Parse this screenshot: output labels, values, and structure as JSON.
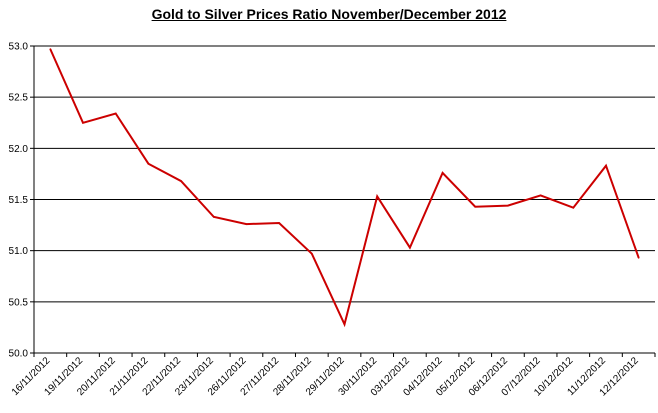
{
  "chart_data": {
    "type": "line",
    "title": "Gold to Silver Prices Ratio November/December 2012",
    "xlabel": "",
    "ylabel": "",
    "x": [
      "16/11/2012",
      "19/11/2012",
      "20/11/2012",
      "21/11/2012",
      "22/11/2012",
      "23/11/2012",
      "26/11/2012",
      "27/11/2012",
      "28/11/2012",
      "29/11/2012",
      "30/11/2012",
      "03/12/2012",
      "04/12/2012",
      "05/12/2012",
      "06/12/2012",
      "07/12/2012",
      "10/12/2012",
      "11/12/2012",
      "12/12/2012"
    ],
    "series": [
      {
        "values": [
          52.97,
          52.25,
          52.34,
          51.85,
          51.68,
          51.33,
          51.26,
          51.27,
          50.97,
          50.28,
          51.53,
          51.03,
          51.76,
          51.43,
          51.44,
          51.54,
          51.42,
          51.83,
          50.93
        ],
        "color": "#cc0000"
      }
    ],
    "ylim": [
      50.0,
      53.0
    ],
    "yticks": [
      "50.0",
      "50.5",
      "51.0",
      "51.5",
      "52.0",
      "52.5",
      "53.0"
    ],
    "grid": "horizontal",
    "legend": "none"
  }
}
